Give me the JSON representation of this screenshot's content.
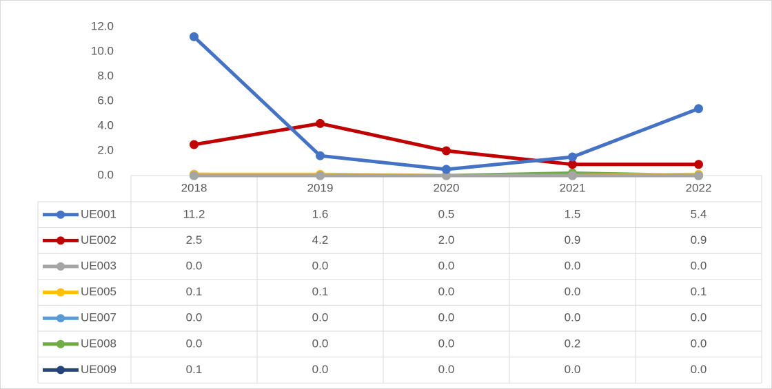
{
  "chart_data": {
    "type": "line",
    "categories": [
      "2018",
      "2019",
      "2020",
      "2021",
      "2022"
    ],
    "ylim": [
      0,
      12
    ],
    "yticks": [
      {
        "value": 0,
        "label": "0.0"
      },
      {
        "value": 2,
        "label": "2.0"
      },
      {
        "value": 4,
        "label": "4.0"
      },
      {
        "value": 6,
        "label": "6.0"
      },
      {
        "value": 8,
        "label": "8.0"
      },
      {
        "value": 10,
        "label": "10.0"
      },
      {
        "value": 12,
        "label": "12.0"
      }
    ],
    "grid": false,
    "series": [
      {
        "name": "UE001",
        "color": "#4472c4",
        "values": [
          11.2,
          1.6,
          0.5,
          1.5,
          5.4
        ],
        "value_labels": [
          "11.2",
          "1.6",
          "0.5",
          "1.5",
          "5.4"
        ]
      },
      {
        "name": "UE002",
        "color": "#c00000",
        "values": [
          2.5,
          4.2,
          2,
          0.9,
          0.9
        ],
        "value_labels": [
          "2.5",
          "4.2",
          "2.0",
          "0.9",
          "0.9"
        ]
      },
      {
        "name": "UE003",
        "color": "#a5a5a5",
        "values": [
          0,
          0,
          0,
          0,
          0
        ],
        "value_labels": [
          "0.0",
          "0.0",
          "0.0",
          "0.0",
          "0.0"
        ]
      },
      {
        "name": "UE005",
        "color": "#ffc000",
        "values": [
          0.1,
          0.1,
          0,
          0,
          0.1
        ],
        "value_labels": [
          "0.1",
          "0.1",
          "0.0",
          "0.0",
          "0.1"
        ]
      },
      {
        "name": "UE007",
        "color": "#5b9bd5",
        "values": [
          0,
          0,
          0,
          0,
          0
        ],
        "value_labels": [
          "0.0",
          "0.0",
          "0.0",
          "0.0",
          "0.0"
        ]
      },
      {
        "name": "UE008",
        "color": "#70ad47",
        "values": [
          0,
          0,
          0,
          0.2,
          0
        ],
        "value_labels": [
          "0.0",
          "0.0",
          "0.0",
          "0.2",
          "0.0"
        ]
      },
      {
        "name": "UE009",
        "color": "#264478",
        "values": [
          0.1,
          0,
          0,
          0,
          0
        ],
        "value_labels": [
          "0.1",
          "0.0",
          "0.0",
          "0.0",
          "0.0"
        ]
      }
    ]
  }
}
